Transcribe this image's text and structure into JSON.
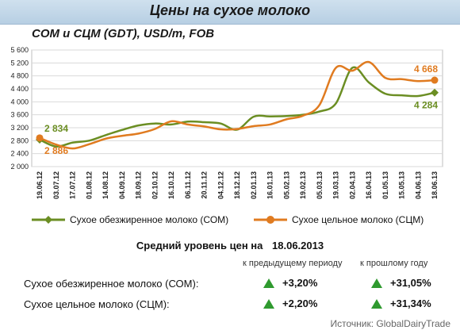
{
  "page": {
    "title": "Цены на сухое молоко",
    "subtitle": "СОМ и СЦМ (GDT), USD/m, FOB",
    "source": "Источник: GlobalDairyTrade"
  },
  "chart_data": {
    "type": "line",
    "title": "",
    "xlabel": "",
    "ylabel": "",
    "ylim": [
      2000,
      5600
    ],
    "y_ticks": [
      "2 000",
      "2 400",
      "2 800",
      "3 200",
      "3 600",
      "4 000",
      "4 400",
      "4 800",
      "5 200",
      "5 600"
    ],
    "x": [
      "19.06.12",
      "03.07.12",
      "17.07.12",
      "01.08.12",
      "14.08.12",
      "04.09.12",
      "18.09.12",
      "02.10.12",
      "16.10.12",
      "06.11.12",
      "20.11.12",
      "04.12.12",
      "18.12.12",
      "02.01.13",
      "16.01.13",
      "05.02.13",
      "19.02.13",
      "05.03.13",
      "19.03.13",
      "02.04.13",
      "16.04.13",
      "01.05.13",
      "15.05.13",
      "04.06.13",
      "18.06.13"
    ],
    "grid": true,
    "legend_position": "bottom",
    "series": [
      {
        "name": "Сухое обезжиренное молоко (СОМ)",
        "color": "#6b8e23",
        "values": [
          2834,
          2620,
          2740,
          2800,
          2970,
          3130,
          3270,
          3330,
          3300,
          3390,
          3370,
          3330,
          3140,
          3540,
          3550,
          3560,
          3600,
          3700,
          3950,
          5050,
          4600,
          4250,
          4200,
          4180,
          4284
        ],
        "labels": [
          {
            "index": 0,
            "text": "2 834"
          },
          {
            "index": 24,
            "text": "4 284"
          }
        ]
      },
      {
        "name": "Сухое цельное молоко (СЦМ)",
        "color": "#e07b20",
        "values": [
          2886,
          2680,
          2560,
          2690,
          2860,
          2950,
          3020,
          3160,
          3400,
          3300,
          3240,
          3150,
          3160,
          3250,
          3300,
          3460,
          3570,
          3900,
          5050,
          4960,
          5230,
          4740,
          4700,
          4640,
          4668
        ],
        "labels": [
          {
            "index": 0,
            "text": "2 886"
          },
          {
            "index": 24,
            "text": "4 668"
          }
        ]
      }
    ]
  },
  "summary": {
    "heading": "Средний уровень цен на",
    "date": "18.06.2013",
    "col_prev": "к предыдущему периоду",
    "col_year": "к прошлому году",
    "rows": [
      {
        "label": "Сухое обезжиренное молоко (СОМ):",
        "prev": "+3,20%",
        "year": "+31,05%"
      },
      {
        "label": "Сухое цельное молоко (СЦМ):",
        "prev": "+2,20%",
        "year": "+31,34%"
      }
    ],
    "up_color": "#2f9a2f"
  }
}
